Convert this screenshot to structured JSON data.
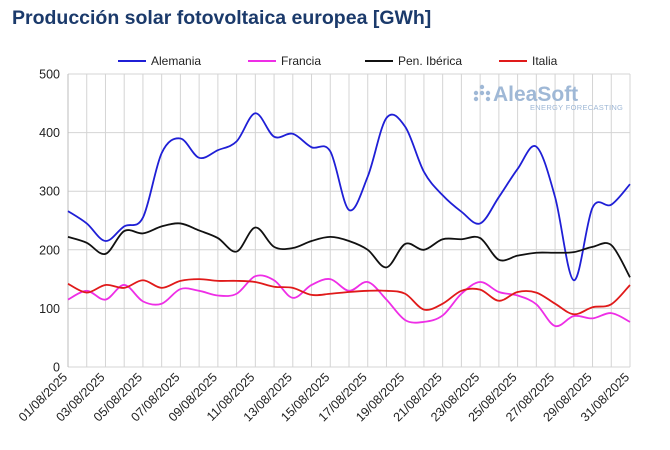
{
  "chart_data": {
    "type": "line",
    "title": "Producción solar fotovoltaica europea [GWh]",
    "ylim": [
      0,
      500
    ],
    "yticks": [
      0,
      100,
      200,
      300,
      400,
      500
    ],
    "grid": true,
    "legend_position": "top",
    "x": [
      "01/08/2025",
      "02/08/2025",
      "03/08/2025",
      "04/08/2025",
      "05/08/2025",
      "06/08/2025",
      "07/08/2025",
      "08/08/2025",
      "09/08/2025",
      "10/08/2025",
      "11/08/2025",
      "12/08/2025",
      "13/08/2025",
      "14/08/2025",
      "15/08/2025",
      "16/08/2025",
      "17/08/2025",
      "18/08/2025",
      "19/08/2025",
      "20/08/2025",
      "21/08/2025",
      "22/08/2025",
      "23/08/2025",
      "24/08/2025",
      "25/08/2025",
      "26/08/2025",
      "27/08/2025",
      "28/08/2025",
      "29/08/2025",
      "30/08/2025",
      "31/08/2025"
    ],
    "xtick_labels": [
      "01/08/2025",
      "03/08/2025",
      "05/08/2025",
      "07/08/2025",
      "09/08/2025",
      "11/08/2025",
      "13/08/2025",
      "15/08/2025",
      "17/08/2025",
      "19/08/2025",
      "21/08/2025",
      "23/08/2025",
      "25/08/2025",
      "27/08/2025",
      "29/08/2025",
      "31/08/2025"
    ],
    "series": [
      {
        "name": "Alemania",
        "color": "#1f1fd6",
        "values": [
          266,
          245,
          215,
          240,
          255,
          365,
          390,
          357,
          370,
          385,
          433,
          393,
          398,
          375,
          368,
          268,
          325,
          425,
          410,
          333,
          293,
          265,
          245,
          290,
          338,
          376,
          290,
          148,
          272,
          277,
          312
        ]
      },
      {
        "name": "Francia",
        "color": "#ee2ee6",
        "values": [
          115,
          130,
          115,
          140,
          112,
          108,
          133,
          130,
          122,
          125,
          155,
          148,
          118,
          140,
          150,
          130,
          145,
          115,
          80,
          77,
          88,
          125,
          145,
          128,
          122,
          107,
          70,
          87,
          83,
          92,
          77
        ]
      },
      {
        "name": "Pen. Ibérica",
        "color": "#111111",
        "values": [
          222,
          212,
          193,
          232,
          228,
          240,
          245,
          233,
          220,
          197,
          238,
          205,
          203,
          215,
          222,
          215,
          200,
          170,
          210,
          200,
          218,
          218,
          220,
          183,
          190,
          195,
          195,
          196,
          205,
          208,
          153
        ]
      },
      {
        "name": "Italia",
        "color": "#e01a1a",
        "values": [
          142,
          127,
          140,
          135,
          148,
          135,
          147,
          150,
          147,
          147,
          145,
          137,
          135,
          123,
          125,
          128,
          130,
          130,
          125,
          98,
          108,
          130,
          132,
          113,
          128,
          127,
          108,
          90,
          102,
          107,
          140
        ]
      }
    ]
  },
  "watermark": {
    "brand": "AleaSoft",
    "tagline": "ENERGY FORECASTING"
  }
}
